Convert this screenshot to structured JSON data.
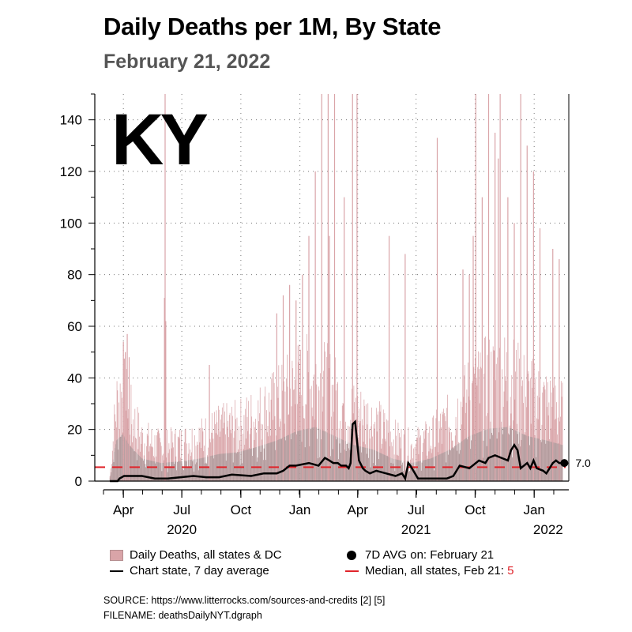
{
  "header": {
    "title": "Daily Deaths per 1M, By State",
    "subtitle": "February 21, 2022"
  },
  "legend": {
    "daily_label": "Daily Deaths, all states & DC",
    "avg_label": "Chart state, 7 day average",
    "dot_label": "7D AVG on: February 21",
    "median_label": "Median, all states, Feb 21: ",
    "median_value": "5"
  },
  "footer": {
    "source": "SOURCE: https://www.litterrocks.com/sources-and-credits [2] [5]",
    "filename": "FILENAME: deathsDailyNYT.dgraph"
  },
  "colors": {
    "bars": "#d9a4a8",
    "bars_dark": "#8f8f8f",
    "avg_line": "#000000",
    "median_line": "#e0242b"
  },
  "chart_data": {
    "type": "bar",
    "state_label": "KY",
    "ylim": [
      0,
      150
    ],
    "yticks": [
      0,
      20,
      40,
      60,
      80,
      100,
      120,
      140
    ],
    "xlim": [
      0,
      720
    ],
    "x_unit": "days since 2020-03-01",
    "x_ticks": [
      {
        "day": 31,
        "label": "Apr"
      },
      {
        "day": 122,
        "label": "Jul"
      },
      {
        "day": 214,
        "label": "Oct"
      },
      {
        "day": 306,
        "label": "Jan"
      },
      {
        "day": 396,
        "label": "Apr"
      },
      {
        "day": 487,
        "label": "Jul"
      },
      {
        "day": 579,
        "label": "Oct"
      },
      {
        "day": 671,
        "label": "Jan"
      }
    ],
    "x_year_labels": [
      {
        "day": 122,
        "label": "2020"
      },
      {
        "day": 487,
        "label": "2021"
      },
      {
        "day": 716,
        "label": "2022"
      }
    ],
    "daily_envelope_days": [
      10,
      20,
      30,
      40,
      60,
      90,
      120,
      150,
      180,
      210,
      240,
      270,
      300,
      330,
      360,
      390,
      420,
      450,
      480,
      510,
      540,
      570,
      600,
      630,
      660,
      690,
      715
    ],
    "daily_envelope_values": [
      3,
      45,
      52,
      40,
      25,
      20,
      22,
      25,
      30,
      32,
      38,
      45,
      55,
      60,
      50,
      40,
      35,
      25,
      20,
      25,
      35,
      50,
      58,
      60,
      50,
      45,
      40
    ],
    "daily_spikes_days": [
      31,
      34,
      37,
      40,
      95,
      96,
      97,
      165,
      270,
      280,
      290,
      300,
      310,
      320,
      330,
      340,
      350,
      352,
      360,
      375,
      388,
      395,
      445,
      470,
      520,
      560,
      570,
      576,
      580,
      590,
      600,
      610,
      615,
      618,
      630,
      640,
      650,
      660,
      670,
      680,
      700,
      710
    ],
    "daily_spikes_values": [
      54,
      50,
      57,
      48,
      71,
      150,
      62,
      45,
      65,
      72,
      76,
      70,
      80,
      95,
      120,
      150,
      150,
      95,
      150,
      110,
      150,
      150,
      95,
      88,
      133,
      82,
      80,
      95,
      150,
      110,
      150,
      135,
      125,
      150,
      110,
      100,
      150,
      130,
      120,
      98,
      90,
      86
    ],
    "avg_series": {
      "name": "Chart state, 7 day average",
      "days": [
        10,
        22,
        25,
        32,
        40,
        60,
        80,
        100,
        120,
        140,
        160,
        180,
        200,
        230,
        250,
        270,
        280,
        290,
        300,
        320,
        335,
        345,
        352,
        358,
        365,
        370,
        378,
        382,
        385,
        388,
        392,
        398,
        404,
        408,
        415,
        425,
        440,
        455,
        465,
        470,
        475,
        478,
        490,
        505,
        520,
        535,
        545,
        555,
        570,
        585,
        595,
        600,
        610,
        620,
        630,
        635,
        640,
        645,
        650,
        660,
        665,
        670,
        675,
        685,
        690,
        695,
        700,
        705,
        710,
        715
      ],
      "values": [
        0,
        0,
        1,
        2,
        2,
        2,
        1,
        1,
        1.5,
        2,
        1.5,
        1.5,
        2.5,
        2,
        3,
        3,
        4,
        6,
        6,
        7,
        6,
        9,
        8,
        7,
        7,
        6,
        6,
        5,
        7,
        22,
        23,
        8,
        5,
        4,
        3,
        4,
        3,
        2,
        3,
        1,
        7,
        6,
        1,
        1,
        1,
        1,
        2,
        6,
        5,
        8,
        7,
        9,
        10,
        9,
        8,
        12,
        14,
        12,
        5,
        7,
        5,
        8,
        5,
        4,
        3,
        5,
        7,
        8,
        7,
        7
      ]
    },
    "current_avg": {
      "day": 718,
      "value": 7.0,
      "label": "7.0"
    },
    "median": 5.4
  }
}
